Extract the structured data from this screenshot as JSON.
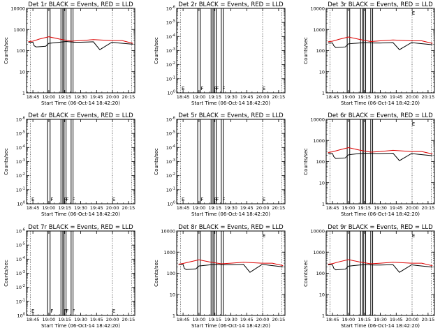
{
  "page": {
    "xlabel": "Start Time (06-Oct-14 18:42:20)",
    "x_ticks": [
      "18:45",
      "19:00",
      "19:15",
      "19:30",
      "19:45",
      "20:00",
      "20:15"
    ]
  },
  "chart_data": [
    {
      "title": "Det 1r BLACK = Events, RED = LLD",
      "ylabel": "Counts/sec",
      "mode": "data",
      "yscale": "log",
      "ylim": [
        1,
        10000
      ],
      "y_ticks": [
        "1",
        "10",
        "100",
        "1000",
        "10000"
      ],
      "series": [
        {
          "name": "BLACK = Events",
          "color": "#000000",
          "x": [
            18.68,
            18.75,
            18.77,
            18.8,
            18.95,
            19.0,
            19.17,
            19.27,
            19.4,
            19.5,
            19.7,
            19.8,
            19.99,
            20.1,
            20.32
          ],
          "y": [
            250,
            250,
            170,
            150,
            160,
            220,
            250,
            270,
            250,
            250,
            260,
            110,
            250,
            230,
            200
          ]
        },
        {
          "name": "RED = LLD",
          "color": "#dd0000",
          "x": [
            18.68,
            18.75,
            18.85,
            19.0,
            19.17,
            19.35,
            19.5,
            19.7,
            19.99,
            20.15,
            20.32
          ],
          "y": [
            270,
            280,
            350,
            450,
            350,
            280,
            300,
            330,
            300,
            300,
            220
          ]
        }
      ],
      "markers": []
    },
    {
      "title": "Det 2r BLACK = Events, RED = LLD",
      "ylabel": "Counts/sec",
      "mode": "empty",
      "yscale": "log",
      "ylim": [
        1,
        1e-06
      ],
      "y_ticks": [
        "10^0",
        "10^-1",
        "10^-2",
        "10^-3",
        "10^-4",
        "10^-5",
        "10^-6"
      ],
      "series": [],
      "markers": [
        {
          "x": 18.71,
          "label": "E"
        },
        {
          "x": 19.01,
          "label": "F"
        },
        {
          "x": 19.22,
          "label": "F"
        },
        {
          "x": 19.25,
          "label": "F"
        },
        {
          "x": 19.35,
          "label": "F"
        },
        {
          "x": 19.98,
          "label": "E"
        }
      ]
    },
    {
      "title": "Det 3r BLACK = Events, RED = LLD",
      "ylabel": "Counts/sec",
      "mode": "data",
      "yscale": "log",
      "ylim": [
        1,
        10000
      ],
      "y_ticks": [
        "1",
        "10",
        "100",
        "1000",
        "10000"
      ],
      "series": [
        {
          "name": "BLACK = Events",
          "color": "#000000",
          "x": [
            18.68,
            18.75,
            18.77,
            18.8,
            18.95,
            19.0,
            19.17,
            19.27,
            19.4,
            19.5,
            19.7,
            19.8,
            19.99,
            20.1,
            20.32
          ],
          "y": [
            230,
            230,
            170,
            140,
            150,
            210,
            230,
            240,
            230,
            230,
            240,
            110,
            240,
            220,
            190
          ]
        },
        {
          "name": "RED = LLD",
          "color": "#dd0000",
          "x": [
            18.68,
            18.75,
            18.85,
            19.0,
            19.17,
            19.35,
            19.5,
            19.7,
            19.99,
            20.15,
            20.32
          ],
          "y": [
            260,
            280,
            340,
            440,
            340,
            270,
            290,
            320,
            290,
            290,
            220
          ]
        }
      ],
      "markers": [
        {
          "x": 19.98,
          "label": "E"
        }
      ]
    },
    {
      "title": "Det 4r BLACK = Events, RED = LLD",
      "ylabel": "Counts/sec",
      "mode": "empty",
      "yscale": "log",
      "ylim": [
        1,
        1e-06
      ],
      "y_ticks": [
        "10^0",
        "10^-1",
        "10^-2",
        "10^-3",
        "10^-4",
        "10^-5",
        "10^-6"
      ],
      "series": [],
      "markers": [
        {
          "x": 18.71,
          "label": "E"
        },
        {
          "x": 19.01,
          "label": "F"
        },
        {
          "x": 19.22,
          "label": "F"
        },
        {
          "x": 19.25,
          "label": "F"
        },
        {
          "x": 19.35,
          "label": "F"
        },
        {
          "x": 19.98,
          "label": "E"
        }
      ]
    },
    {
      "title": "Det 5r BLACK = Events, RED = LLD",
      "ylabel": "Counts/sec",
      "mode": "empty",
      "yscale": "log",
      "ylim": [
        1,
        1e-06
      ],
      "y_ticks": [
        "10^0",
        "10^-1",
        "10^-2",
        "10^-3",
        "10^-4",
        "10^-5",
        "10^-6"
      ],
      "series": [],
      "markers": [
        {
          "x": 18.71,
          "label": "E"
        },
        {
          "x": 19.01,
          "label": "F"
        },
        {
          "x": 19.22,
          "label": "F"
        },
        {
          "x": 19.25,
          "label": "F"
        },
        {
          "x": 19.35,
          "label": "F"
        },
        {
          "x": 19.98,
          "label": "E"
        }
      ]
    },
    {
      "title": "Det 6r BLACK = Events, RED = LLD",
      "ylabel": "Counts/sec",
      "mode": "data",
      "yscale": "log",
      "ylim": [
        1,
        10000
      ],
      "y_ticks": [
        "1",
        "10",
        "100",
        "1000",
        "10000"
      ],
      "series": [
        {
          "name": "BLACK = Events",
          "color": "#000000",
          "x": [
            18.68,
            18.75,
            18.77,
            18.8,
            18.95,
            19.0,
            19.17,
            19.27,
            19.4,
            19.5,
            19.7,
            19.8,
            19.99,
            20.1,
            20.32
          ],
          "y": [
            240,
            240,
            170,
            140,
            150,
            210,
            240,
            250,
            240,
            240,
            250,
            110,
            240,
            220,
            190
          ]
        },
        {
          "name": "RED = LLD",
          "color": "#dd0000",
          "x": [
            18.68,
            18.75,
            18.85,
            19.0,
            19.17,
            19.35,
            19.5,
            19.7,
            19.99,
            20.15,
            20.32
          ],
          "y": [
            270,
            290,
            350,
            460,
            350,
            280,
            300,
            340,
            300,
            300,
            230
          ]
        }
      ],
      "markers": [
        {
          "x": 19.98,
          "label": "E"
        }
      ]
    },
    {
      "title": "Det 7r BLACK = Events, RED = LLD",
      "ylabel": "Counts/sec",
      "mode": "empty",
      "yscale": "log",
      "ylim": [
        1,
        1e-06
      ],
      "y_ticks": [
        "10^0",
        "10^-1",
        "10^-2",
        "10^-3",
        "10^-4",
        "10^-5",
        "10^-6"
      ],
      "series": [],
      "markers": [
        {
          "x": 18.71,
          "label": "E"
        },
        {
          "x": 19.01,
          "label": "F"
        },
        {
          "x": 19.22,
          "label": "F"
        },
        {
          "x": 19.25,
          "label": "F"
        },
        {
          "x": 19.35,
          "label": "F"
        },
        {
          "x": 19.98,
          "label": "E"
        }
      ]
    },
    {
      "title": "Det 8r BLACK = Events, RED = LLD",
      "ylabel": "Counts/sec",
      "mode": "data",
      "yscale": "log",
      "ylim": [
        1,
        10000
      ],
      "y_ticks": [
        "1",
        "10",
        "100",
        "1000",
        "10000"
      ],
      "series": [
        {
          "name": "BLACK = Events",
          "color": "#000000",
          "x": [
            18.68,
            18.75,
            18.77,
            18.8,
            18.95,
            19.0,
            19.17,
            19.27,
            19.4,
            19.5,
            19.7,
            19.8,
            19.99,
            20.1,
            20.32
          ],
          "y": [
            260,
            260,
            170,
            150,
            160,
            220,
            250,
            260,
            250,
            250,
            260,
            110,
            260,
            240,
            200
          ]
        },
        {
          "name": "RED = LLD",
          "color": "#dd0000",
          "x": [
            18.68,
            18.75,
            18.85,
            19.0,
            19.17,
            19.35,
            19.5,
            19.7,
            19.99,
            20.15,
            20.32
          ],
          "y": [
            270,
            290,
            340,
            430,
            340,
            280,
            300,
            330,
            300,
            300,
            230
          ]
        }
      ],
      "markers": [
        {
          "x": 19.98,
          "label": "E"
        }
      ]
    },
    {
      "title": "Det 9r BLACK = Events, RED = LLD",
      "ylabel": "Counts/sec",
      "mode": "data",
      "yscale": "log",
      "ylim": [
        1,
        10000
      ],
      "y_ticks": [
        "1",
        "10",
        "100",
        "1000",
        "10000"
      ],
      "series": [
        {
          "name": "BLACK = Events",
          "color": "#000000",
          "x": [
            18.68,
            18.75,
            18.77,
            18.8,
            18.95,
            19.0,
            19.17,
            19.27,
            19.4,
            19.5,
            19.7,
            19.8,
            19.99,
            20.1,
            20.32
          ],
          "y": [
            250,
            250,
            170,
            145,
            155,
            215,
            245,
            255,
            245,
            245,
            255,
            110,
            250,
            230,
            195
          ]
        },
        {
          "name": "RED = LLD",
          "color": "#dd0000",
          "x": [
            18.68,
            18.75,
            18.85,
            19.0,
            19.17,
            19.35,
            19.5,
            19.7,
            19.99,
            20.15,
            20.32
          ],
          "y": [
            270,
            285,
            345,
            440,
            345,
            280,
            300,
            330,
            300,
            300,
            225
          ]
        }
      ],
      "markers": [
        {
          "x": 19.98,
          "label": "E"
        }
      ]
    }
  ]
}
